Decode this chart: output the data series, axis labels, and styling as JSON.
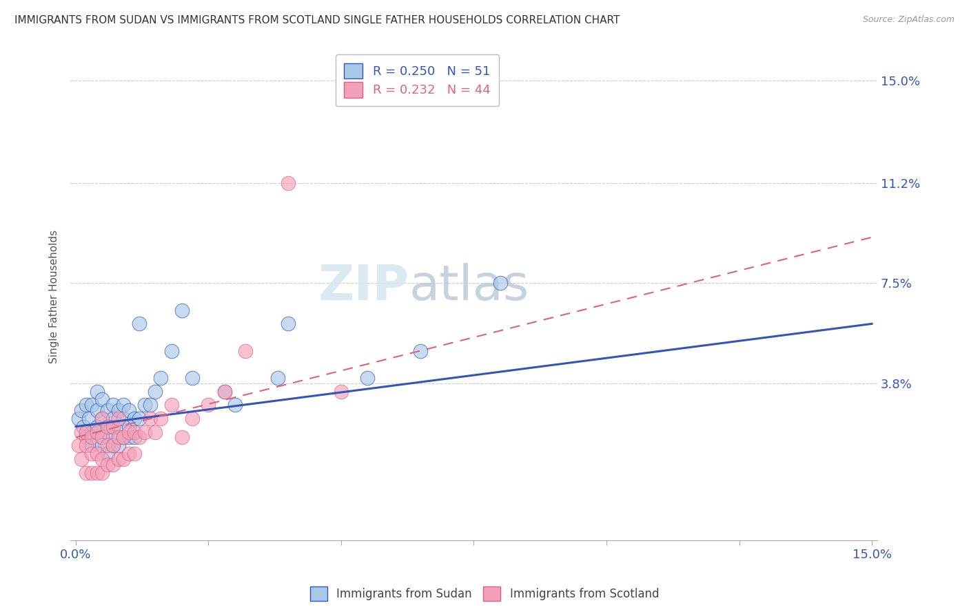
{
  "title": "IMMIGRANTS FROM SUDAN VS IMMIGRANTS FROM SCOTLAND SINGLE FATHER HOUSEHOLDS CORRELATION CHART",
  "source": "Source: ZipAtlas.com",
  "ylabel": "Single Father Households",
  "xlim": [
    0.0,
    0.15
  ],
  "ylim": [
    -0.02,
    0.16
  ],
  "yticks": [
    0.038,
    0.075,
    0.112,
    0.15
  ],
  "ytick_labels": [
    "3.8%",
    "7.5%",
    "11.2%",
    "15.0%"
  ],
  "xticks": [
    0.0,
    0.025,
    0.05,
    0.075,
    0.1,
    0.125,
    0.15
  ],
  "legend_sudan": "R = 0.250   N = 51",
  "legend_scotland": "R = 0.232   N = 44",
  "color_sudan": "#A8C8E8",
  "color_scotland": "#F4A0B8",
  "line_color_sudan": "#3355BB",
  "line_color_scotland": "#E06080",
  "background_color": "#FFFFFF",
  "sudan_scatter_x": [
    0.0005,
    0.001,
    0.0015,
    0.002,
    0.002,
    0.0025,
    0.003,
    0.003,
    0.003,
    0.004,
    0.004,
    0.004,
    0.005,
    0.005,
    0.005,
    0.005,
    0.006,
    0.006,
    0.006,
    0.006,
    0.007,
    0.007,
    0.007,
    0.007,
    0.008,
    0.008,
    0.008,
    0.009,
    0.009,
    0.009,
    0.01,
    0.01,
    0.01,
    0.011,
    0.011,
    0.012,
    0.013,
    0.014,
    0.015,
    0.018,
    0.022,
    0.028,
    0.038,
    0.055,
    0.065,
    0.08,
    0.03,
    0.04,
    0.012,
    0.016,
    0.02
  ],
  "sudan_scatter_y": [
    0.025,
    0.028,
    0.022,
    0.03,
    0.018,
    0.025,
    0.02,
    0.03,
    0.015,
    0.022,
    0.028,
    0.035,
    0.018,
    0.025,
    0.032,
    0.015,
    0.02,
    0.028,
    0.012,
    0.022,
    0.015,
    0.025,
    0.03,
    0.018,
    0.022,
    0.028,
    0.015,
    0.018,
    0.025,
    0.03,
    0.018,
    0.022,
    0.028,
    0.018,
    0.025,
    0.025,
    0.03,
    0.03,
    0.035,
    0.05,
    0.04,
    0.035,
    0.04,
    0.04,
    0.05,
    0.075,
    0.03,
    0.06,
    0.06,
    0.04,
    0.065
  ],
  "scotland_scatter_x": [
    0.0005,
    0.001,
    0.001,
    0.002,
    0.002,
    0.002,
    0.003,
    0.003,
    0.003,
    0.004,
    0.004,
    0.004,
    0.005,
    0.005,
    0.005,
    0.005,
    0.006,
    0.006,
    0.006,
    0.007,
    0.007,
    0.007,
    0.008,
    0.008,
    0.008,
    0.009,
    0.009,
    0.01,
    0.01,
    0.011,
    0.011,
    0.012,
    0.013,
    0.014,
    0.015,
    0.016,
    0.018,
    0.02,
    0.022,
    0.025,
    0.028,
    0.032,
    0.04,
    0.05
  ],
  "scotland_scatter_y": [
    0.015,
    0.01,
    0.02,
    0.005,
    0.015,
    0.02,
    0.005,
    0.012,
    0.018,
    0.005,
    0.012,
    0.02,
    0.005,
    0.01,
    0.018,
    0.025,
    0.008,
    0.015,
    0.022,
    0.008,
    0.015,
    0.022,
    0.01,
    0.018,
    0.025,
    0.01,
    0.018,
    0.012,
    0.02,
    0.012,
    0.02,
    0.018,
    0.02,
    0.025,
    0.02,
    0.025,
    0.03,
    0.018,
    0.025,
    0.03,
    0.035,
    0.05,
    0.112,
    0.035
  ],
  "sudan_line_x0": 0.0,
  "sudan_line_y0": 0.022,
  "sudan_line_x1": 0.15,
  "sudan_line_y1": 0.06,
  "scotland_line_x0": 0.0,
  "scotland_line_y0": 0.018,
  "scotland_line_x1": 0.15,
  "scotland_line_y1": 0.092
}
